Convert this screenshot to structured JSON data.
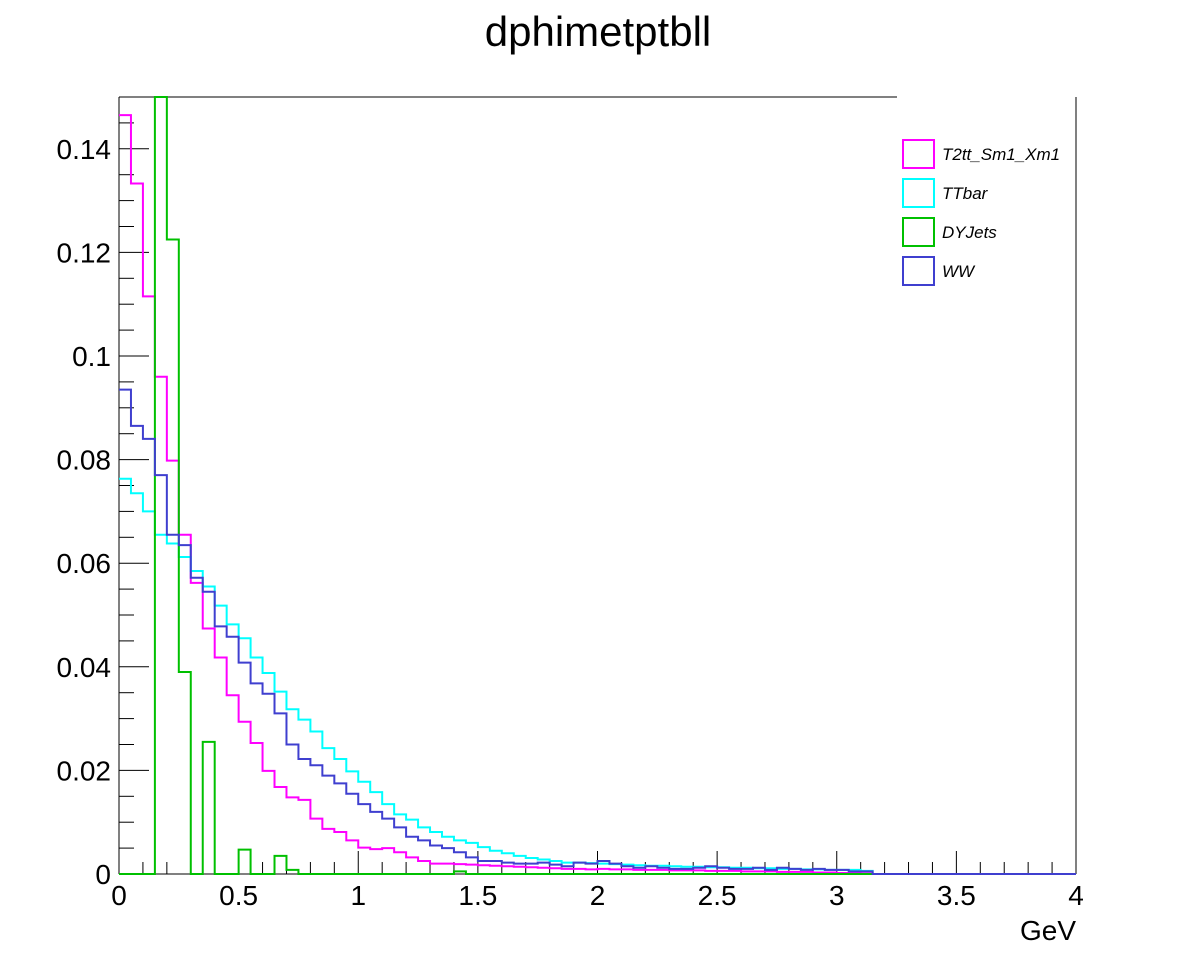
{
  "chart_data": {
    "type": "line",
    "histogram_style": "step",
    "title": "dphimetptbll",
    "xlabel": "GeV",
    "ylabel": "",
    "xlim": [
      0,
      4
    ],
    "ylim": [
      0,
      0.15
    ],
    "bin_width": 0.05,
    "x_ticks": [
      "0",
      "0.5",
      "1",
      "1.5",
      "2",
      "2.5",
      "3",
      "3.5",
      "4"
    ],
    "y_ticks": [
      "0",
      "0.02",
      "0.04",
      "0.06",
      "0.08",
      "0.1",
      "0.12",
      "0.14"
    ],
    "legend_position": "top-right",
    "series": [
      {
        "name": "T2tt_Sm1_Xm1",
        "color": "#ff00ff",
        "values": [
          0.1465,
          0.1333,
          0.1115,
          0.096,
          0.0798,
          0.0655,
          0.0562,
          0.0474,
          0.0418,
          0.0345,
          0.0294,
          0.0253,
          0.0199,
          0.0168,
          0.0148,
          0.0143,
          0.0107,
          0.0087,
          0.0081,
          0.0065,
          0.0051,
          0.0048,
          0.005,
          0.0042,
          0.0032,
          0.0025,
          0.002,
          0.002,
          0.0019,
          0.0018,
          0.0017,
          0.0016,
          0.0015,
          0.0014,
          0.0013,
          0.0012,
          0.0011,
          0.001,
          0.001,
          0.0009,
          0.001,
          0.0009,
          0.0009,
          0.0008,
          0.0008,
          0.0008,
          0.0007,
          0.0007,
          0.0007,
          0.0006,
          0.0006,
          0.0006,
          0.0005,
          0.0005,
          0.0005,
          0.0004,
          0.0004,
          0.0004,
          0.0003,
          0.0003,
          0.0002,
          0.0002,
          0.0001,
          0,
          0,
          0,
          0,
          0,
          0,
          0,
          0,
          0,
          0,
          0,
          0,
          0,
          0,
          0,
          0,
          0
        ]
      },
      {
        "name": "TTbar",
        "color": "#00ffff",
        "values": [
          0.0763,
          0.0735,
          0.07,
          0.0655,
          0.0638,
          0.0612,
          0.0585,
          0.0555,
          0.0518,
          0.0482,
          0.0455,
          0.0418,
          0.0388,
          0.0352,
          0.0318,
          0.0298,
          0.0275,
          0.0243,
          0.0222,
          0.0198,
          0.0178,
          0.0158,
          0.0135,
          0.0115,
          0.0105,
          0.009,
          0.0081,
          0.0072,
          0.0065,
          0.006,
          0.0052,
          0.0045,
          0.004,
          0.0035,
          0.0031,
          0.0028,
          0.0025,
          0.0022,
          0.0022,
          0.0021,
          0.002,
          0.0019,
          0.0018,
          0.0017,
          0.0016,
          0.0016,
          0.0015,
          0.0014,
          0.0014,
          0.0013,
          0.0013,
          0.0012,
          0.0012,
          0.0011,
          0.0011,
          0.001,
          0.001,
          0.0009,
          0.0009,
          0.0008,
          0.0008,
          0.0008,
          0.0006,
          0,
          0,
          0,
          0,
          0,
          0,
          0,
          0,
          0,
          0,
          0,
          0,
          0,
          0,
          0,
          0,
          0
        ]
      },
      {
        "name": "DYJets",
        "color": "#00c000",
        "values": [
          0,
          0,
          0,
          0.151,
          0.1225,
          0.039,
          0,
          0.0255,
          0,
          0,
          0.0047,
          0,
          0,
          0.0035,
          0.0008,
          0,
          0,
          0,
          0,
          0,
          0,
          0,
          0,
          0,
          0,
          0,
          0,
          0,
          0.0005,
          0,
          0,
          0,
          0,
          0,
          0,
          0,
          0,
          0,
          0,
          0,
          0,
          0,
          0,
          0,
          0,
          0,
          0,
          0,
          0,
          0,
          0,
          0,
          0,
          0,
          0,
          0,
          0,
          0,
          0,
          0,
          0,
          0,
          0,
          0,
          0,
          0,
          0,
          0,
          0,
          0,
          0,
          0,
          0,
          0,
          0,
          0,
          0,
          0,
          0,
          0
        ]
      },
      {
        "name": "WW",
        "color": "#3f3fcf",
        "values": [
          0.0935,
          0.0865,
          0.084,
          0.077,
          0.0655,
          0.0635,
          0.0572,
          0.0545,
          0.0478,
          0.0458,
          0.0408,
          0.0368,
          0.0348,
          0.031,
          0.025,
          0.0222,
          0.021,
          0.019,
          0.0175,
          0.0155,
          0.0135,
          0.012,
          0.0107,
          0.009,
          0.0072,
          0.0065,
          0.0055,
          0.005,
          0.0042,
          0.0032,
          0.0025,
          0.0025,
          0.0022,
          0.002,
          0.002,
          0.0022,
          0.0018,
          0.0015,
          0.0022,
          0.002,
          0.0025,
          0.002,
          0.0015,
          0.0012,
          0.0015,
          0.0012,
          0.001,
          0.001,
          0.0012,
          0.0015,
          0.0012,
          0.001,
          0.001,
          0.0012,
          0.0008,
          0.0012,
          0.001,
          0.0008,
          0.001,
          0.0008,
          0.0008,
          0.0005,
          0.0005,
          0,
          0,
          0,
          0,
          0,
          0,
          0,
          0,
          0,
          0,
          0,
          0,
          0,
          0,
          0,
          0,
          0
        ]
      }
    ]
  }
}
